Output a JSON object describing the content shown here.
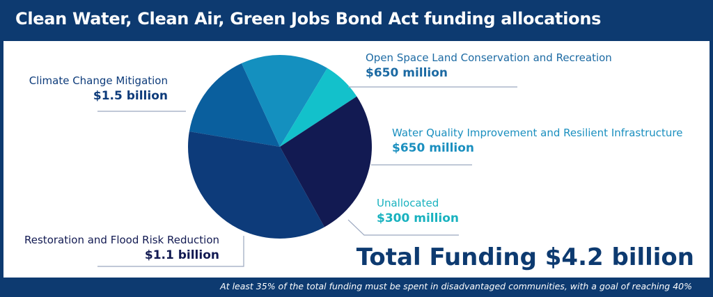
{
  "title": "Clean Water, Clean Air, Green Jobs Bond Act funding allocations",
  "total_label": "Total Funding $4.2 billion",
  "footnote": "At least 35% of the total funding must be spent in disadvantaged communities, with a goal of reaching 40%",
  "colors": {
    "frame": "#0d3a70",
    "title_text": "#ffffff"
  },
  "chart_data": {
    "type": "pie",
    "unit": "billion USD",
    "total": 4.2,
    "slices": [
      {
        "name": "Open Space Land Conservation and Recreation",
        "value": 0.65,
        "value_label": "$650 million",
        "color": "#0a5f9e",
        "label_color": "#1c6aa3"
      },
      {
        "name": "Water Quality Improvement and Resilient Infrastructure",
        "value": 0.65,
        "value_label": "$650 million",
        "color": "#1490bf",
        "label_color": "#1a8fbf"
      },
      {
        "name": "Unallocated",
        "value": 0.3,
        "value_label": "$300 million",
        "color": "#13c1cb",
        "label_color": "#19b2bf"
      },
      {
        "name": "Restoration and Flood Risk Reduction",
        "value": 1.1,
        "value_label": "$1.1 billion",
        "color": "#121a52",
        "label_color": "#121a52"
      },
      {
        "name": "Climate Change Mitigation",
        "value": 1.5,
        "value_label": "$1.5 billion",
        "color": "#0d3b7a",
        "label_color": "#0d3b7a"
      }
    ]
  }
}
